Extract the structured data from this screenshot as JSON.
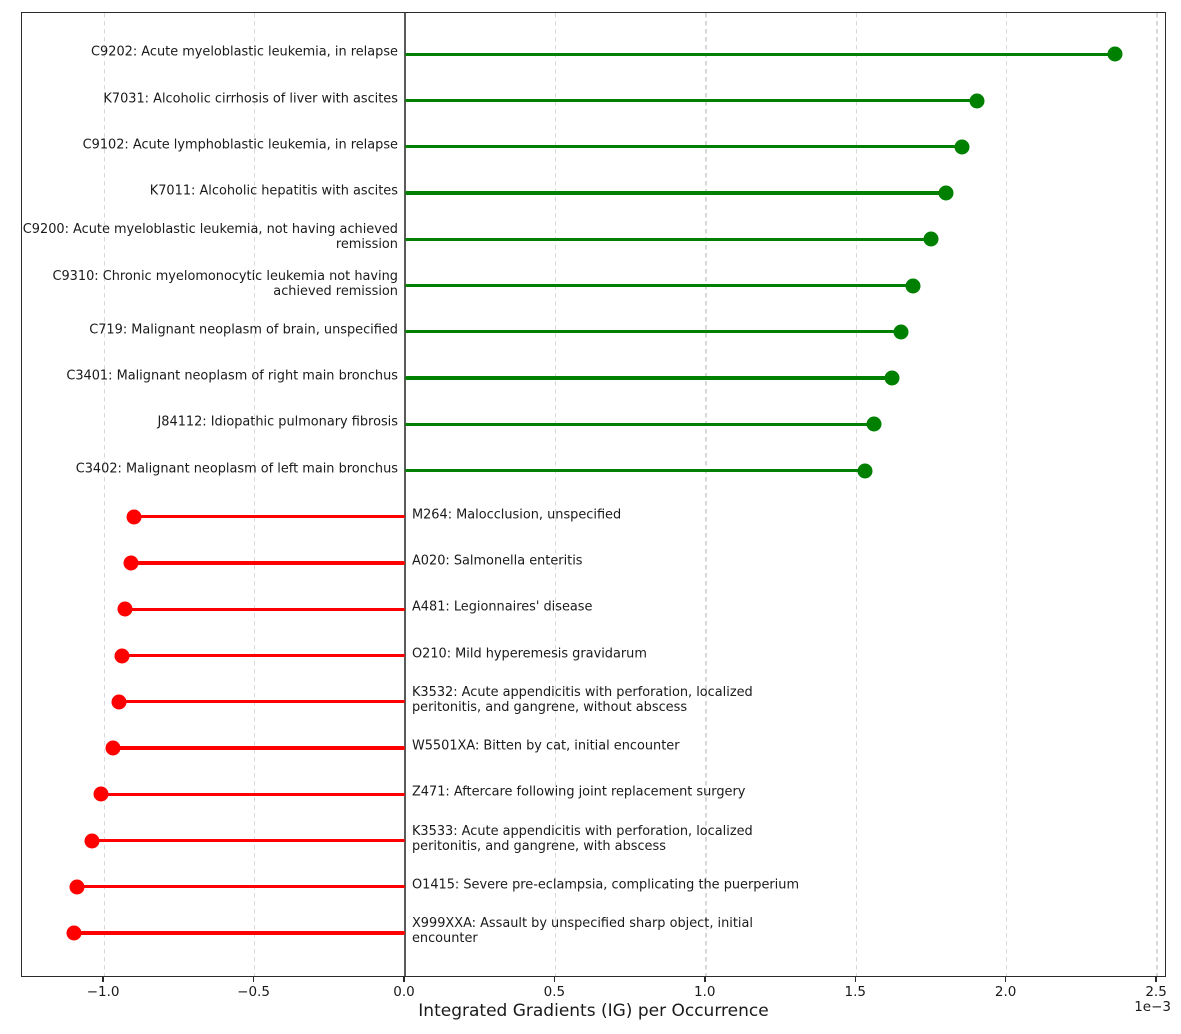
{
  "figure": {
    "background": "#ffffff"
  },
  "chart_data": {
    "type": "bar",
    "variant": "horizontal-lollipop",
    "title": "",
    "xlabel": "Integrated Gradients (IG) per Occurrence",
    "x_offset_text": "1e−3",
    "value_scale": "1e-3",
    "xlim": [
      -1.273,
      2.533
    ],
    "x_ticks": [
      -1.0,
      -0.5,
      0.0,
      0.5,
      1.0,
      1.5,
      2.0,
      2.5
    ],
    "x_tick_labels": [
      "−1.0",
      "−0.5",
      "0.0",
      "0.5",
      "1.0",
      "1.5",
      "2.0",
      "2.5"
    ],
    "grid": "vertical-dashed",
    "zero_line": true,
    "legend": "none",
    "colors": {
      "positive": "#008000",
      "negative": "#ff0000",
      "grid": "#d8d8d8",
      "spine": "#2b2b2b",
      "zero_line": "#5a5a5a",
      "text": "#1a1a1a"
    },
    "items": [
      {
        "code": "C9202",
        "label": "C9202: Acute myeloblastic leukemia, in relapse",
        "value": 2.36
      },
      {
        "code": "K7031",
        "label": "K7031: Alcoholic cirrhosis of liver with ascites",
        "value": 1.9
      },
      {
        "code": "C9102",
        "label": "C9102: Acute lymphoblastic leukemia, in relapse",
        "value": 1.85
      },
      {
        "code": "K7011",
        "label": "K7011: Alcoholic hepatitis with ascites",
        "value": 1.8
      },
      {
        "code": "C9200",
        "label": "C9200: Acute myeloblastic leukemia, not having achieved\nremission",
        "value": 1.75
      },
      {
        "code": "C9310",
        "label": "C9310: Chronic myelomonocytic leukemia not having\nachieved remission",
        "value": 1.69
      },
      {
        "code": "C719",
        "label": "C719: Malignant neoplasm of brain, unspecified",
        "value": 1.65
      },
      {
        "code": "C3401",
        "label": "C3401: Malignant neoplasm of right main bronchus",
        "value": 1.62
      },
      {
        "code": "J84112",
        "label": "J84112: Idiopathic pulmonary fibrosis",
        "value": 1.56
      },
      {
        "code": "C3402",
        "label": "C3402: Malignant neoplasm of left main bronchus",
        "value": 1.53
      },
      {
        "code": "M264",
        "label": "M264: Malocclusion, unspecified",
        "value": -0.9
      },
      {
        "code": "A020",
        "label": "A020: Salmonella enteritis",
        "value": -0.91
      },
      {
        "code": "A481",
        "label": "A481: Legionnaires' disease",
        "value": -0.93
      },
      {
        "code": "O210",
        "label": "O210: Mild hyperemesis gravidarum",
        "value": -0.94
      },
      {
        "code": "K3532",
        "label": "K3532: Acute appendicitis with perforation, localized\nperitonitis, and gangrene, without abscess",
        "value": -0.95
      },
      {
        "code": "W5501XA",
        "label": "W5501XA: Bitten by cat, initial encounter",
        "value": -0.97
      },
      {
        "code": "Z471",
        "label": "Z471: Aftercare following joint replacement surgery",
        "value": -1.01
      },
      {
        "code": "K3533",
        "label": "K3533: Acute appendicitis with perforation, localized\nperitonitis, and gangrene, with abscess",
        "value": -1.04
      },
      {
        "code": "O1415",
        "label": "O1415: Severe pre-eclampsia, complicating the puerperium",
        "value": -1.09
      },
      {
        "code": "X999XXA",
        "label": "X999XXA: Assault by unspecified sharp object, initial\nencounter",
        "value": -1.1
      }
    ]
  }
}
